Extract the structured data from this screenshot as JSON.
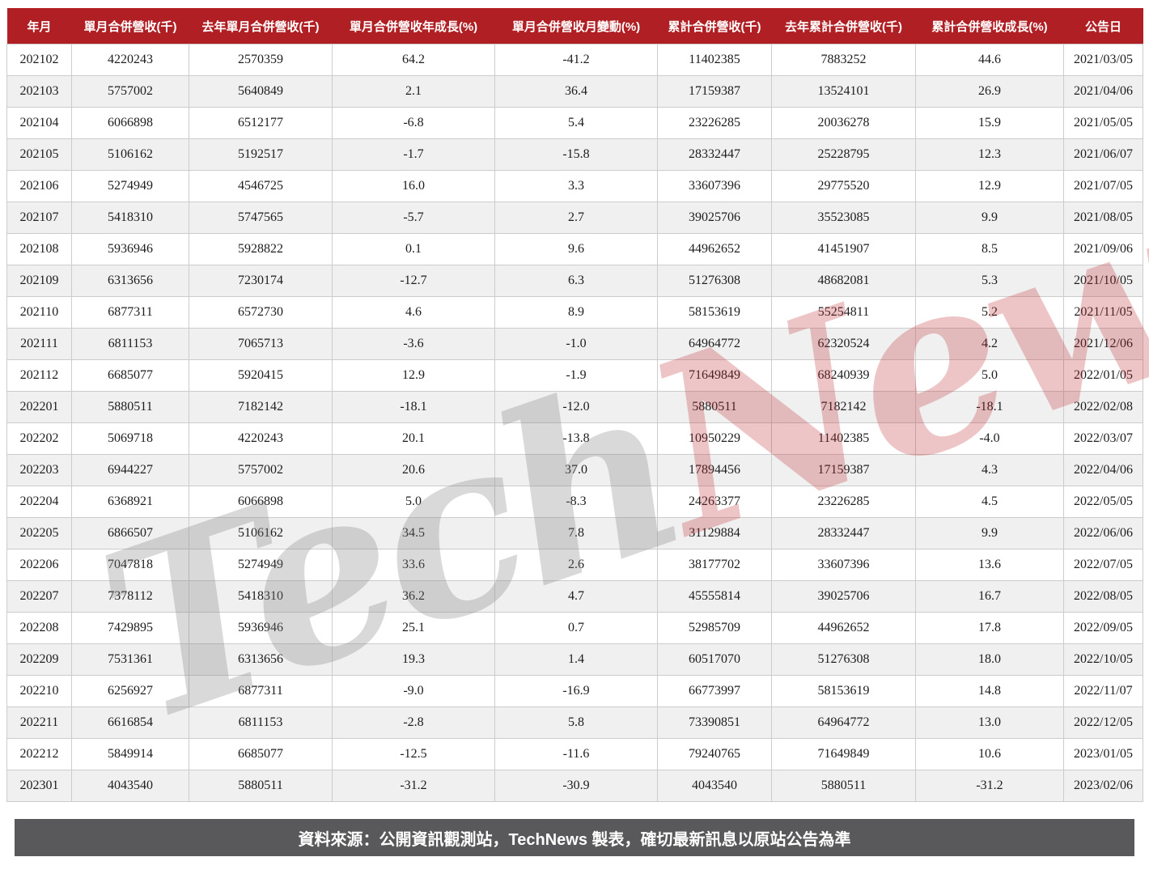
{
  "table": {
    "columns": [
      {
        "key": "year_month",
        "label": "年月"
      },
      {
        "key": "monthly_revenue",
        "label": "單月合併營收(千)"
      },
      {
        "key": "last_year_monthly_revenue",
        "label": "去年單月合併營收(千)"
      },
      {
        "key": "monthly_yoy_growth_pct",
        "label": "單月合併營收年成長(%)"
      },
      {
        "key": "monthly_mom_change_pct",
        "label": "單月合併營收月變動(%)"
      },
      {
        "key": "cumulative_revenue",
        "label": "累計合併營收(千)"
      },
      {
        "key": "last_year_cumulative_revenue",
        "label": "去年累計合併營收(千)"
      },
      {
        "key": "cumulative_growth_pct",
        "label": "累計合併營收成長(%)"
      },
      {
        "key": "announce_date",
        "label": "公告日"
      }
    ],
    "rows": [
      [
        "202102",
        "4220243",
        "2570359",
        "64.2",
        "-41.2",
        "11402385",
        "7883252",
        "44.6",
        "2021/03/05"
      ],
      [
        "202103",
        "5757002",
        "5640849",
        "2.1",
        "36.4",
        "17159387",
        "13524101",
        "26.9",
        "2021/04/06"
      ],
      [
        "202104",
        "6066898",
        "6512177",
        "-6.8",
        "5.4",
        "23226285",
        "20036278",
        "15.9",
        "2021/05/05"
      ],
      [
        "202105",
        "5106162",
        "5192517",
        "-1.7",
        "-15.8",
        "28332447",
        "25228795",
        "12.3",
        "2021/06/07"
      ],
      [
        "202106",
        "5274949",
        "4546725",
        "16.0",
        "3.3",
        "33607396",
        "29775520",
        "12.9",
        "2021/07/05"
      ],
      [
        "202107",
        "5418310",
        "5747565",
        "-5.7",
        "2.7",
        "39025706",
        "35523085",
        "9.9",
        "2021/08/05"
      ],
      [
        "202108",
        "5936946",
        "5928822",
        "0.1",
        "9.6",
        "44962652",
        "41451907",
        "8.5",
        "2021/09/06"
      ],
      [
        "202109",
        "6313656",
        "7230174",
        "-12.7",
        "6.3",
        "51276308",
        "48682081",
        "5.3",
        "2021/10/05"
      ],
      [
        "202110",
        "6877311",
        "6572730",
        "4.6",
        "8.9",
        "58153619",
        "55254811",
        "5.2",
        "2021/11/05"
      ],
      [
        "202111",
        "6811153",
        "7065713",
        "-3.6",
        "-1.0",
        "64964772",
        "62320524",
        "4.2",
        "2021/12/06"
      ],
      [
        "202112",
        "6685077",
        "5920415",
        "12.9",
        "-1.9",
        "71649849",
        "68240939",
        "5.0",
        "2022/01/05"
      ],
      [
        "202201",
        "5880511",
        "7182142",
        "-18.1",
        "-12.0",
        "5880511",
        "7182142",
        "-18.1",
        "2022/02/08"
      ],
      [
        "202202",
        "5069718",
        "4220243",
        "20.1",
        "-13.8",
        "10950229",
        "11402385",
        "-4.0",
        "2022/03/07"
      ],
      [
        "202203",
        "6944227",
        "5757002",
        "20.6",
        "37.0",
        "17894456",
        "17159387",
        "4.3",
        "2022/04/06"
      ],
      [
        "202204",
        "6368921",
        "6066898",
        "5.0",
        "-8.3",
        "24263377",
        "23226285",
        "4.5",
        "2022/05/05"
      ],
      [
        "202205",
        "6866507",
        "5106162",
        "34.5",
        "7.8",
        "31129884",
        "28332447",
        "9.9",
        "2022/06/06"
      ],
      [
        "202206",
        "7047818",
        "5274949",
        "33.6",
        "2.6",
        "38177702",
        "33607396",
        "13.6",
        "2022/07/05"
      ],
      [
        "202207",
        "7378112",
        "5418310",
        "36.2",
        "4.7",
        "45555814",
        "39025706",
        "16.7",
        "2022/08/05"
      ],
      [
        "202208",
        "7429895",
        "5936946",
        "25.1",
        "0.7",
        "52985709",
        "44962652",
        "17.8",
        "2022/09/05"
      ],
      [
        "202209",
        "7531361",
        "6313656",
        "19.3",
        "1.4",
        "60517070",
        "51276308",
        "18.0",
        "2022/10/05"
      ],
      [
        "202210",
        "6256927",
        "6877311",
        "-9.0",
        "-16.9",
        "66773997",
        "58153619",
        "14.8",
        "2022/11/07"
      ],
      [
        "202211",
        "6616854",
        "6811153",
        "-2.8",
        "5.8",
        "73390851",
        "64964772",
        "13.0",
        "2022/12/05"
      ],
      [
        "202212",
        "5849914",
        "6685077",
        "-12.5",
        "-11.6",
        "79240765",
        "71649849",
        "10.6",
        "2023/01/05"
      ],
      [
        "202301",
        "4043540",
        "5880511",
        "-31.2",
        "-30.9",
        "4043540",
        "5880511",
        "-31.2",
        "2023/02/06"
      ]
    ]
  },
  "watermark": {
    "part1": "Tech",
    "part2": "News"
  },
  "footer": {
    "text": "資料來源：公開資訊觀測站，TechNews 製表，確切最新訊息以原站公告為準"
  },
  "colors": {
    "header_background": "#b01f24",
    "footer_background": "#59595b",
    "row_stripe": "#f0f0f0",
    "cell_border": "#cccccc",
    "watermark_gray": "#828282",
    "watermark_red": "#c32d34"
  }
}
